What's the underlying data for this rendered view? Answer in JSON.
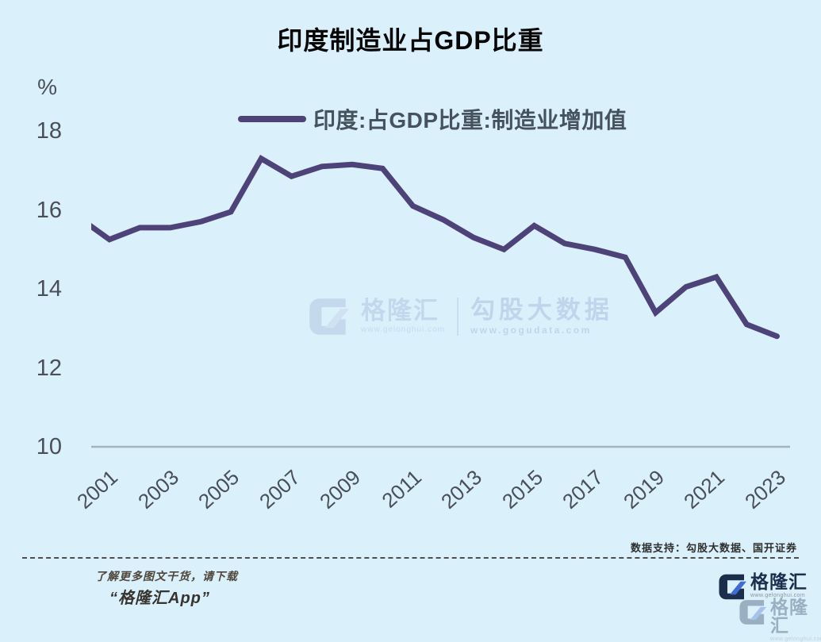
{
  "page": {
    "title": "印度制造业占GDP比重",
    "unit_label": "%"
  },
  "chart_data": {
    "type": "line",
    "title": "印度制造业占GDP比重",
    "unit": "%",
    "x": [
      2000,
      2001,
      2002,
      2003,
      2004,
      2005,
      2006,
      2007,
      2008,
      2009,
      2010,
      2011,
      2012,
      2013,
      2014,
      2015,
      2016,
      2017,
      2018,
      2019,
      2020,
      2021,
      2022,
      2023
    ],
    "series": [
      {
        "name": "印度:占GDP比重:制造业增加值",
        "color": "#4e4379",
        "values": [
          15.8,
          15.25,
          15.55,
          15.55,
          15.7,
          15.95,
          17.3,
          16.85,
          17.1,
          17.15,
          17.05,
          16.1,
          15.75,
          15.3,
          15.0,
          15.6,
          15.15,
          15.0,
          14.8,
          13.4,
          14.05,
          14.3,
          13.1,
          12.8
        ]
      }
    ],
    "x_tick_labels": [
      "2001",
      "2003",
      "2005",
      "2007",
      "2009",
      "2011",
      "2013",
      "2015",
      "2017",
      "2019",
      "2021",
      "2023"
    ],
    "y_ticks": [
      18,
      16,
      14,
      12,
      10
    ],
    "ylim": [
      10,
      18
    ],
    "grid": false,
    "legend_position": "top-center",
    "axis_line_color": "#9fb3c0"
  },
  "watermark": {
    "brand1": "格隆汇",
    "brand1_url": "www.gelonghui.com",
    "brand2": "勾股大数据",
    "brand2_url": "www.gogudata.com"
  },
  "footnote": {
    "data_support": "数据支持：勾股大数据、国开证券"
  },
  "footer": {
    "promo_line1": "了解更多图文干货，请下载",
    "promo_line2": "“格隆汇App”",
    "logo_text": "格隆汇",
    "logo_url": "www.gelonghui.com"
  }
}
